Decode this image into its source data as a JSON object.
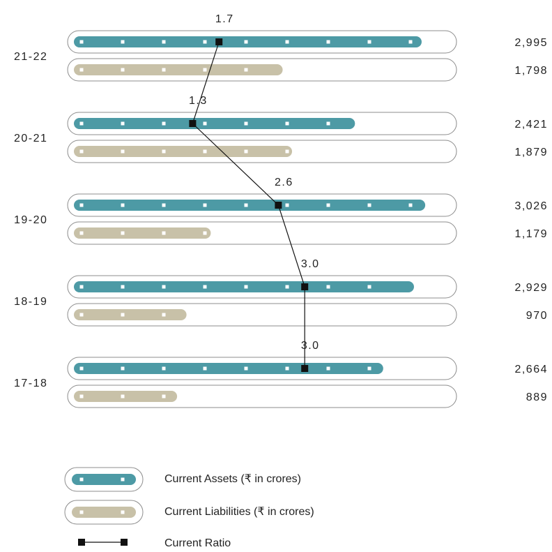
{
  "chart_data": {
    "type": "bar",
    "orientation": "horizontal",
    "categories": [
      "21-22",
      "20-21",
      "19-20",
      "18-19",
      "17-18"
    ],
    "series": [
      {
        "name": "Current Assets (₹ in crores)",
        "values": [
          2995,
          2421,
          3026,
          2929,
          2664
        ],
        "labels": [
          "2,995",
          "2,421",
          "3,026",
          "2,929",
          "2,664"
        ],
        "color": "#4d9aa5"
      },
      {
        "name": "Current Liabilities (₹ in crores)",
        "values": [
          1798,
          1879,
          1179,
          970,
          889
        ],
        "labels": [
          "1,798",
          "1,879",
          "1,179",
          "970",
          "889"
        ],
        "color": "#c8c1a8"
      }
    ],
    "ratio": {
      "name": "Current Ratio",
      "values": [
        1.7,
        1.3,
        2.6,
        3.0,
        3.0
      ],
      "labels": [
        "1.7",
        "1.3",
        "2.6",
        "3.0",
        "3.0"
      ],
      "color": "#111111"
    },
    "xlim": [
      0,
      3200
    ],
    "grid": false,
    "legend": "bottom-left",
    "title": "",
    "xlabel": "",
    "ylabel": ""
  }
}
